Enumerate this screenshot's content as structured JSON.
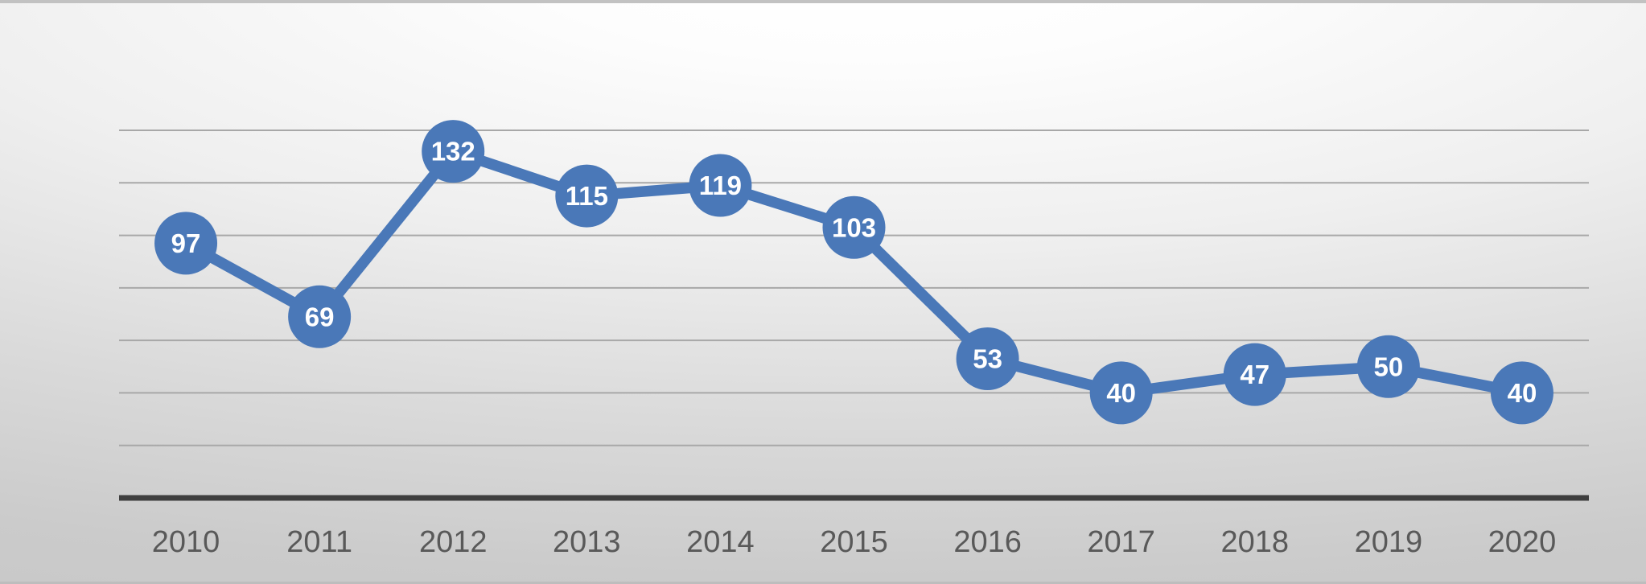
{
  "chart_data": {
    "type": "line",
    "categories": [
      "2010",
      "2011",
      "2012",
      "2013",
      "2014",
      "2015",
      "2016",
      "2017",
      "2018",
      "2019",
      "2020"
    ],
    "values": [
      97,
      69,
      132,
      115,
      119,
      103,
      53,
      40,
      47,
      50,
      40
    ],
    "title": "",
    "xlabel": "",
    "ylabel": "",
    "ylim": [
      0,
      140
    ],
    "ytick_step": 20,
    "y_axis_labels_visible": false,
    "grid": true,
    "legend": false,
    "marker": "circle",
    "data_labels_position": "inside-markers"
  },
  "colors": {
    "line": "#4a78b8",
    "marker_fill": "#4a78b8",
    "data_label_text": "#ffffff",
    "gridline": "#a8a8a8",
    "axis_line": "#3f3f3f",
    "tick_label_text": "#595959",
    "background_center": "#ffffff",
    "background_edge": "#c6c6c6"
  }
}
